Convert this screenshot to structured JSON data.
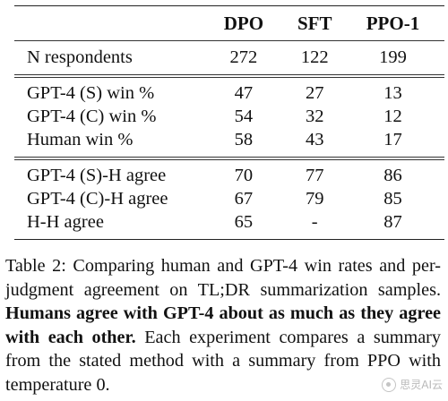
{
  "table": {
    "headers": [
      "DPO",
      "SFT",
      "PPO-1"
    ],
    "rows_group1": [
      {
        "label": "N respondents",
        "values": [
          "272",
          "122",
          "199"
        ]
      }
    ],
    "rows_group2": [
      {
        "label": "GPT-4 (S) win %",
        "values": [
          "47",
          "27",
          "13"
        ]
      },
      {
        "label": "GPT-4 (C) win %",
        "values": [
          "54",
          "32",
          "12"
        ]
      },
      {
        "label": "Human win %",
        "values": [
          "58",
          "43",
          "17"
        ]
      }
    ],
    "rows_group3": [
      {
        "label": "GPT-4 (S)-H agree",
        "values": [
          "70",
          "77",
          "86"
        ]
      },
      {
        "label": "GPT-4 (C)-H agree",
        "values": [
          "67",
          "79",
          "85"
        ]
      },
      {
        "label": "H-H agree",
        "values": [
          "65",
          "-",
          "87"
        ]
      }
    ]
  },
  "caption": {
    "part1": "Table 2: Comparing human and GPT-4 win rates and per-judgment agreement on TL;DR summarization samples. ",
    "bold": "Humans agree with GPT-4 about as much as they agree with each other.",
    "part2": " Each experiment compares a summary from the stated method with a summary from PPO with temperature 0."
  },
  "watermark": {
    "text": "思灵AI云"
  }
}
